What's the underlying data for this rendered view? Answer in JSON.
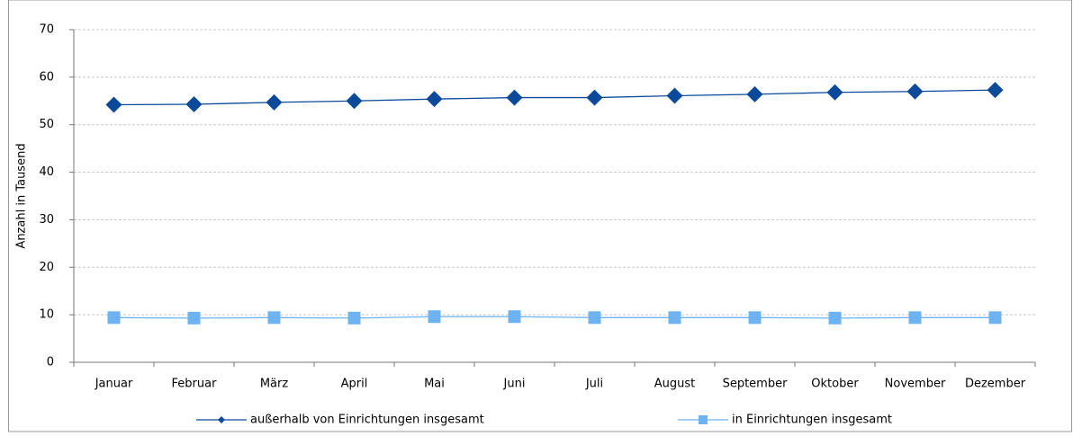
{
  "chart_data": {
    "type": "line",
    "y_label": "Anzahl in Tausend",
    "categories": [
      "Januar",
      "Februar",
      "März",
      "April",
      "Mai",
      "Juni",
      "Juli",
      "August",
      "September",
      "Oktober",
      "November",
      "Dezember"
    ],
    "series": [
      {
        "name": "außerhalb von Einrichtungen insgesamt",
        "color": "#0b4a9b",
        "marker": "diamond",
        "values": [
          54.2,
          54.3,
          54.7,
          55.0,
          55.4,
          55.7,
          55.7,
          56.1,
          56.4,
          56.8,
          57.0,
          57.3
        ]
      },
      {
        "name": "in Einrichtungen insgesamt",
        "color": "#6db3f2",
        "marker": "square",
        "values": [
          9.4,
          9.3,
          9.4,
          9.3,
          9.6,
          9.6,
          9.4,
          9.4,
          9.4,
          9.3,
          9.4,
          9.4
        ]
      }
    ],
    "ylim": [
      0,
      70
    ],
    "yticks": [
      0,
      10,
      20,
      30,
      40,
      50,
      60,
      70
    ],
    "grid": true
  }
}
